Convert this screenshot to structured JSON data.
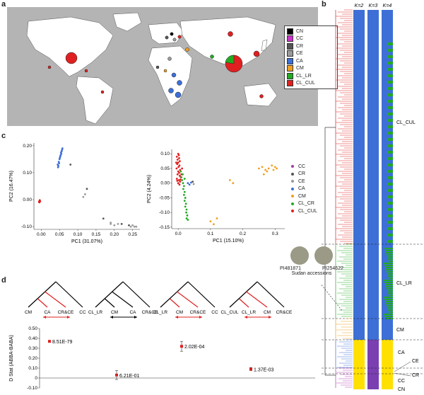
{
  "panels": {
    "a": "a",
    "b": "b",
    "c": "c",
    "d": "d"
  },
  "legend_a": [
    {
      "label": "CN",
      "color": "#000000"
    },
    {
      "label": "CC",
      "color": "#cc33cc"
    },
    {
      "label": "CR",
      "color": "#555555"
    },
    {
      "label": "CE",
      "color": "#9a9a9a"
    },
    {
      "label": "CA",
      "color": "#3d6fd6"
    },
    {
      "label": "CM",
      "color": "#f0a020"
    },
    {
      "label": "CL_LR",
      "color": "#22aa22"
    },
    {
      "label": "CL_CUL",
      "color": "#e02020"
    }
  ],
  "legend_c": [
    {
      "label": "CC",
      "color": "#a040a0"
    },
    {
      "label": "CR",
      "color": "#555555"
    },
    {
      "label": "CE",
      "color": "#9a9a9a"
    },
    {
      "label": "CA",
      "color": "#3d6fd6"
    },
    {
      "label": "CM",
      "color": "#f0a020"
    },
    {
      "label": "CL_CR",
      "color": "#22aa22"
    },
    {
      "label": "CL_CUL",
      "color": "#e02020"
    }
  ],
  "panel_b": {
    "k_labels": [
      "K=2",
      "K=3",
      "K=4"
    ],
    "group_labels": [
      "CL_CUL",
      "CL_LR",
      "CM",
      "CA",
      "CE",
      "CR",
      "CC",
      "CN"
    ]
  },
  "sudan": {
    "ids": [
      "PI481871",
      "PI254622"
    ],
    "caption": "Sudan accessions"
  },
  "chart_data": [
    {
      "type": "scatter",
      "title": "",
      "xlabel": "PC1 (31.07%)",
      "ylabel": "PC2 (16.47%)",
      "xlim": [
        -0.02,
        0.27
      ],
      "ylim": [
        -0.11,
        0.21
      ],
      "xticks": [
        "0.00",
        "0.05",
        "0.10",
        "0.15",
        "0.20",
        "0.25"
      ],
      "yticks": [
        "0.20",
        "0.10",
        "0.00",
        "-0.10"
      ],
      "series": [
        {
          "name": "CA",
          "color": "#3d6fd6",
          "points": [
            [
              0.045,
              0.13
            ],
            [
              0.047,
              0.125
            ],
            [
              0.048,
              0.14
            ],
            [
              0.05,
              0.15
            ],
            [
              0.052,
              0.16
            ],
            [
              0.053,
              0.165
            ],
            [
              0.055,
              0.17
            ],
            [
              0.054,
              0.175
            ],
            [
              0.056,
              0.18
            ],
            [
              0.057,
              0.185
            ],
            [
              0.046,
              0.12
            ],
            [
              0.049,
              0.135
            ],
            [
              0.051,
              0.155
            ],
            [
              0.058,
              0.19
            ]
          ]
        },
        {
          "name": "CE",
          "color": "#9a9a9a",
          "points": [
            [
              0.12,
              0.02
            ],
            [
              0.115,
              0.01
            ],
            [
              0.19,
              -0.09
            ],
            [
              0.2,
              -0.095
            ],
            [
              0.21,
              -0.09
            ],
            [
              0.245,
              -0.1
            ],
            [
              0.25,
              -0.095
            ],
            [
              0.255,
              -0.1
            ],
            [
              0.26,
              -0.1
            ],
            [
              0.19,
              -0.085
            ]
          ]
        },
        {
          "name": "CR",
          "color": "#555555",
          "points": [
            [
              0.08,
              0.13
            ],
            [
              0.125,
              0.04
            ],
            [
              0.17,
              -0.07
            ],
            [
              0.22,
              -0.09
            ],
            [
              0.24,
              -0.095
            ]
          ]
        },
        {
          "name": "CL_CUL",
          "color": "#e02020",
          "points": [
            [
              -0.005,
              -0.005
            ],
            [
              -0.004,
              -0.002
            ],
            [
              -0.006,
              -0.008
            ],
            [
              -0.003,
              -0.006
            ],
            [
              -0.005,
              -0.01
            ]
          ]
        }
      ]
    },
    {
      "type": "scatter",
      "title": "",
      "xlabel": "PC1 (15.10%)",
      "ylabel": "PC2 (4.24%)",
      "xlim": [
        -0.02,
        0.33
      ],
      "ylim": [
        -0.155,
        0.115
      ],
      "xticks": [
        "0.0",
        "0.1",
        "0.2",
        "0.3"
      ],
      "yticks": [
        "0.10",
        "0.05",
        "0.00",
        "-0.05",
        "-0.10",
        "-0.15"
      ],
      "series": [
        {
          "name": "CL_CUL",
          "color": "#e02020",
          "points": [
            [
              0.0,
              0.1
            ],
            [
              0.002,
              0.095
            ],
            [
              -0.004,
              0.09
            ],
            [
              0.003,
              0.085
            ],
            [
              -0.002,
              0.08
            ],
            [
              0.005,
              0.075
            ],
            [
              0.0,
              0.07
            ],
            [
              -0.003,
              0.065
            ],
            [
              0.004,
              0.06
            ],
            [
              0.001,
              0.055
            ],
            [
              -0.005,
              0.05
            ],
            [
              0.006,
              0.045
            ],
            [
              0.0,
              0.04
            ],
            [
              0.003,
              0.035
            ],
            [
              -0.002,
              0.03
            ],
            [
              0.005,
              0.025
            ],
            [
              0.008,
              0.02
            ],
            [
              -0.004,
              0.015
            ],
            [
              0.002,
              0.01
            ],
            [
              0.006,
              0.005
            ],
            [
              0.0,
              0.0
            ],
            [
              0.004,
              -0.005
            ],
            [
              -0.003,
              0.008
            ],
            [
              0.007,
              0.012
            ],
            [
              0.01,
              0.03
            ],
            [
              0.012,
              0.05
            ],
            [
              -0.006,
              0.07
            ]
          ]
        },
        {
          "name": "CL_CR",
          "color": "#22aa22",
          "points": [
            [
              0.01,
              0.02
            ],
            [
              0.012,
              0.01
            ],
            [
              0.015,
              0.0
            ],
            [
              0.018,
              -0.01
            ],
            [
              0.016,
              -0.02
            ],
            [
              0.02,
              -0.03
            ],
            [
              0.018,
              -0.04
            ],
            [
              0.022,
              -0.05
            ],
            [
              0.02,
              -0.06
            ],
            [
              0.024,
              -0.07
            ],
            [
              0.022,
              -0.08
            ],
            [
              0.026,
              -0.09
            ],
            [
              0.025,
              -0.1
            ],
            [
              0.028,
              -0.11
            ],
            [
              0.026,
              -0.12
            ],
            [
              0.03,
              -0.125
            ],
            [
              0.014,
              0.03
            ],
            [
              0.008,
              0.04
            ],
            [
              0.02,
              0.015
            ]
          ]
        },
        {
          "name": "CM",
          "color": "#f0a020",
          "points": [
            [
              0.1,
              -0.13
            ],
            [
              0.12,
              -0.12
            ],
            [
              0.11,
              -0.14
            ],
            [
              0.16,
              0.01
            ],
            [
              0.25,
              0.05
            ],
            [
              0.26,
              0.055
            ],
            [
              0.27,
              0.045
            ],
            [
              0.28,
              0.05
            ],
            [
              0.29,
              0.06
            ],
            [
              0.3,
              0.055
            ],
            [
              0.265,
              0.03
            ],
            [
              0.275,
              0.04
            ],
            [
              0.295,
              0.045
            ],
            [
              0.305,
              0.05
            ],
            [
              0.17,
              0.0
            ]
          ]
        },
        {
          "name": "CA",
          "color": "#3d6fd6",
          "points": [
            [
              0.03,
              0.0
            ],
            [
              0.035,
              -0.005
            ],
            [
              0.04,
              0.002
            ]
          ]
        },
        {
          "name": "CR",
          "color": "#555555",
          "points": [
            [
              0.045,
              0.005
            ]
          ]
        },
        {
          "name": "CE",
          "color": "#9a9a9a",
          "points": [
            [
              0.048,
              -0.003
            ]
          ]
        }
      ]
    },
    {
      "type": "scatter",
      "title": "",
      "xlabel": "",
      "ylabel": "D Stat (ABBA-BABA)",
      "ylim": [
        -0.1,
        0.5
      ],
      "yticks": [
        "0.50",
        "0.40",
        "0.30",
        "0.20",
        "0.10",
        "0",
        "-0.10"
      ],
      "categories": [
        "CM CA CR&CE CC",
        "CL_LR CM CA CR&CE",
        "CL_LR CM CR&CE CC",
        "CL_CUL CL_LR CM CR&CE"
      ],
      "values": [
        0.37,
        0.03,
        0.32,
        0.09
      ],
      "errors": [
        0.01,
        0.045,
        0.05,
        0.015
      ],
      "p_labels": [
        "8.51E-79",
        "6.21E-01",
        "2.02E-04",
        "1.37E-03"
      ],
      "tree_leaves": [
        [
          "CM",
          "CA",
          "CR&CE",
          "CC"
        ],
        [
          "CL_LR",
          "CM",
          "CA",
          "CR&CE"
        ],
        [
          "CL_LR",
          "CM",
          "CR&CE",
          "CC"
        ],
        [
          "CL_CUL",
          "CL_LR",
          "CM",
          "CR&CE"
        ]
      ]
    }
  ]
}
